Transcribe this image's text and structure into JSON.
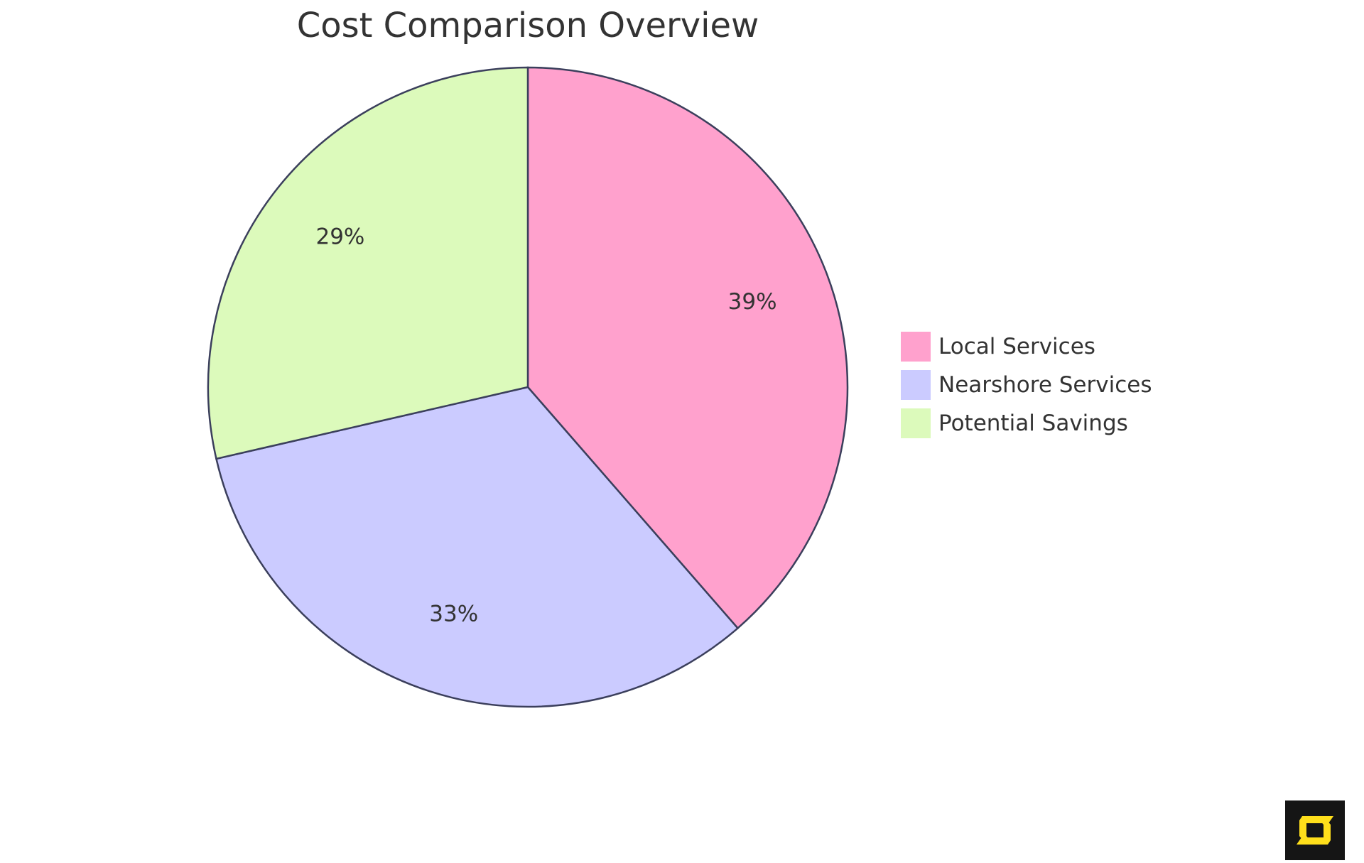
{
  "chart_data": {
    "type": "pie",
    "title": "Cost Comparison Overview",
    "categories": [
      "Local Services",
      "Nearshore Services",
      "Potential Savings"
    ],
    "values": [
      38.6,
      32.8,
      28.6
    ],
    "labels": [
      "39%",
      "33%",
      "29%"
    ],
    "colors": [
      "#ffa1cd",
      "#cbcbff",
      "#dcfabb"
    ],
    "stroke_color": "#3b3f5c",
    "legend_position": "right"
  },
  "logo": {
    "text": "S",
    "background": "#151515",
    "color": "#ffdf1b"
  }
}
